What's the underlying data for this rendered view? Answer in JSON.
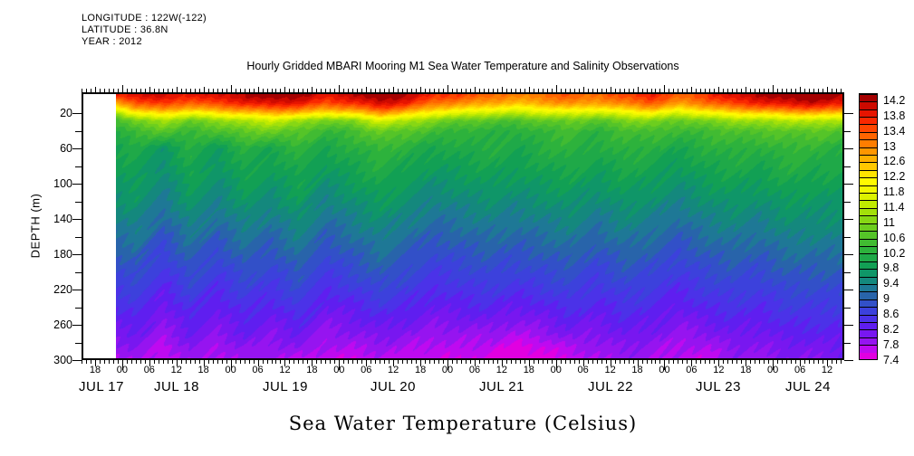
{
  "header": {
    "longitude": "LONGITUDE : 122W(-122)",
    "latitude": "LATITUDE : 36.8N",
    "year": "YEAR : 2012",
    "title": "Hourly Gridded MBARI Mooring M1 Sea Water Temperature and Salinity Observations"
  },
  "footer": {
    "title": "Sea Water Temperature (Celsius)"
  },
  "chart_data": {
    "type": "heatmap",
    "title": "Hourly Gridded MBARI Mooring M1 Sea Water Temperature and Salinity Observations",
    "subtitle_lines": [
      "LONGITUDE : 122W(-122)",
      "LATITUDE : 36.8N",
      "YEAR : 2012"
    ],
    "value_label": "Sea Water Temperature (Celsius)",
    "grid_on": false,
    "y_axis": {
      "label": "DEPTH (m)",
      "labeled_ticks": [
        20,
        60,
        100,
        140,
        180,
        220,
        260,
        300
      ],
      "minor_ticks": [
        40,
        80,
        120,
        160,
        200,
        240,
        280
      ],
      "ylim": [
        0,
        300
      ],
      "inverted": true
    },
    "x_axis": {
      "day_labels": [
        "JUL 17",
        "JUL 18",
        "JUL 19",
        "JUL 20",
        "JUL 21",
        "JUL 22",
        "JUL 23",
        "JUL 24"
      ],
      "hour_labels": [
        "18",
        "00",
        "06",
        "12",
        "18",
        "00",
        "06",
        "12",
        "18",
        "00",
        "06",
        "12",
        "18",
        "00",
        "06",
        "12",
        "18",
        "00",
        "06",
        "12",
        "18",
        "00",
        "06",
        "12",
        "18",
        "00",
        "06",
        "12"
      ],
      "minor_tick_step_hours": 1,
      "labeled_tick_step_hours": 6,
      "range": "2012-07-17 15:00 to 2012-07-24 16:00"
    },
    "colorbar": {
      "position": "right",
      "units": "Celsius",
      "cell_step": 0.2,
      "min": 7.4,
      "max": 14.4,
      "tick_labels": [
        "7.4",
        "7.8",
        "8.2",
        "8.6",
        "9",
        "9.4",
        "9.8",
        "10.2",
        "10.6",
        "11",
        "11.4",
        "11.8",
        "12.2",
        "12.6",
        "13",
        "13.4",
        "13.8",
        "14.2"
      ],
      "cell_colors_bottom_to_top": [
        "#E100E1",
        "#BE0AF0",
        "#9614F0",
        "#7817F0",
        "#5F1EF0",
        "#4B32E8",
        "#3C41DC",
        "#3250C8",
        "#2864AA",
        "#1E7896",
        "#14887D",
        "#0F9668",
        "#12A054",
        "#1FA948",
        "#2DB23C",
        "#41BB32",
        "#55C428",
        "#6DCE1E",
        "#87D714",
        "#A3E00A",
        "#C0EA00",
        "#DCF200",
        "#F2F800",
        "#FFFA00",
        "#FFE400",
        "#FFC800",
        "#FFAF00",
        "#FF9600",
        "#FF7D00",
        "#FF6400",
        "#FF4600",
        "#FA2800",
        "#E61400",
        "#CD0A00",
        "#A50000"
      ]
    },
    "grid": {
      "time_hours_after_jul17_1500": [
        7.5,
        12,
        18,
        24,
        30,
        36,
        42,
        48,
        54,
        60,
        66,
        72,
        78,
        84,
        90,
        96,
        102,
        108,
        114,
        120,
        126,
        132,
        138,
        144,
        150,
        156,
        162,
        168
      ],
      "data_start": "2012-07-17 ~22:30 (no data earlier; white gap at left of panel)",
      "depths_m": [
        0,
        8,
        14,
        20,
        28,
        40,
        60,
        90,
        120,
        150,
        180,
        210,
        240,
        270,
        285,
        300
      ],
      "temps_c": [
        [
          13.8,
          13.9,
          14.1,
          13.8,
          14.0,
          14.2,
          14.4,
          14.3,
          13.9,
          14.1,
          14.5,
          14.2,
          13.7,
          13.5,
          13.3,
          13.0,
          13.2,
          13.4,
          13.2,
          13.5,
          13.8,
          13.3,
          13.6,
          14.0,
          14.2,
          14.4,
          14.5,
          14.3
        ],
        [
          12.8,
          13.4,
          13.7,
          13.3,
          13.6,
          13.8,
          14.0,
          13.9,
          13.5,
          13.7,
          14.1,
          13.8,
          13.2,
          13.0,
          12.8,
          12.6,
          12.8,
          13.0,
          12.8,
          13.1,
          13.4,
          12.9,
          13.2,
          13.6,
          13.8,
          14.0,
          14.1,
          13.9
        ],
        [
          12.0,
          12.8,
          13.1,
          12.7,
          13.0,
          13.2,
          13.4,
          13.3,
          12.9,
          13.1,
          13.6,
          13.2,
          12.6,
          12.4,
          12.2,
          12.0,
          12.2,
          12.4,
          12.2,
          12.5,
          12.8,
          12.3,
          12.6,
          13.0,
          13.2,
          13.4,
          13.5,
          13.3
        ],
        [
          11.2,
          12.0,
          12.3,
          11.9,
          12.2,
          12.4,
          12.6,
          12.5,
          12.1,
          12.3,
          12.8,
          12.4,
          11.9,
          11.7,
          11.5,
          11.4,
          11.6,
          11.7,
          11.5,
          11.8,
          12.0,
          11.6,
          11.9,
          12.2,
          12.3,
          12.5,
          12.6,
          12.4
        ],
        [
          10.4,
          11.0,
          11.3,
          10.9,
          11.1,
          11.4,
          11.6,
          11.3,
          10.9,
          11.1,
          11.7,
          11.4,
          11.0,
          10.8,
          10.7,
          10.6,
          10.8,
          10.9,
          10.7,
          11.0,
          11.1,
          10.8,
          11.0,
          11.2,
          11.3,
          11.4,
          11.5,
          11.3
        ],
        [
          10.2,
          10.5,
          10.7,
          10.4,
          10.6,
          10.8,
          10.9,
          10.7,
          10.4,
          10.5,
          10.9,
          10.7,
          10.5,
          10.3,
          10.3,
          10.2,
          10.4,
          10.5,
          10.3,
          10.5,
          10.6,
          10.4,
          10.5,
          10.6,
          10.7,
          10.7,
          10.8,
          10.6
        ],
        [
          10.0,
          10.1,
          9.7,
          10.2,
          9.8,
          10.2,
          10.0,
          10.3,
          10.0,
          10.2,
          10.4,
          10.2,
          10.0,
          10.1,
          10.2,
          10.0,
          10.2,
          10.3,
          10.1,
          10.3,
          10.2,
          10.0,
          10.2,
          10.3,
          10.2,
          10.4,
          10.3,
          10.2
        ],
        [
          9.8,
          9.9,
          9.5,
          10.0,
          9.6,
          10.0,
          9.8,
          10.0,
          9.7,
          9.9,
          10.1,
          9.9,
          9.7,
          9.8,
          9.9,
          9.8,
          9.9,
          10.0,
          9.8,
          10.0,
          9.9,
          9.7,
          9.9,
          10.0,
          9.9,
          10.1,
          10.0,
          10.0
        ],
        [
          9.6,
          9.7,
          9.3,
          9.7,
          9.4,
          9.7,
          9.5,
          9.8,
          9.4,
          9.6,
          9.8,
          9.6,
          9.4,
          9.5,
          9.6,
          9.5,
          9.6,
          9.7,
          9.5,
          9.7,
          9.6,
          9.4,
          9.6,
          9.7,
          9.6,
          9.8,
          9.7,
          9.7
        ],
        [
          9.3,
          9.4,
          9.0,
          9.4,
          9.1,
          9.4,
          9.2,
          9.5,
          9.1,
          9.3,
          9.5,
          9.3,
          9.1,
          9.2,
          9.3,
          9.2,
          9.3,
          9.4,
          9.2,
          9.4,
          9.3,
          9.1,
          9.3,
          9.4,
          9.3,
          9.5,
          9.5,
          9.5
        ],
        [
          9.0,
          9.1,
          8.7,
          9.1,
          8.8,
          9.1,
          8.9,
          9.2,
          8.8,
          9.0,
          9.2,
          9.0,
          8.8,
          8.9,
          9.0,
          8.9,
          9.0,
          9.1,
          8.9,
          9.1,
          9.0,
          8.8,
          9.0,
          9.1,
          9.0,
          9.2,
          9.2,
          9.2
        ],
        [
          8.7,
          8.8,
          8.4,
          8.8,
          8.5,
          8.8,
          8.6,
          8.9,
          8.5,
          8.7,
          8.9,
          8.7,
          8.5,
          8.6,
          8.7,
          8.6,
          8.7,
          8.8,
          8.6,
          8.8,
          8.7,
          8.5,
          8.7,
          8.8,
          8.7,
          8.9,
          8.9,
          8.9
        ],
        [
          8.4,
          8.5,
          8.1,
          8.5,
          8.2,
          8.5,
          8.3,
          8.6,
          8.2,
          8.3,
          8.5,
          8.4,
          8.2,
          8.3,
          8.4,
          8.2,
          8.3,
          8.5,
          8.3,
          8.5,
          8.4,
          8.2,
          8.4,
          8.5,
          8.4,
          8.6,
          8.6,
          8.6
        ],
        [
          8.1,
          8.2,
          7.9,
          8.2,
          8.0,
          8.2,
          8.0,
          8.2,
          7.9,
          8.0,
          8.1,
          8.0,
          7.9,
          7.9,
          7.9,
          7.8,
          7.9,
          8.1,
          8.0,
          8.2,
          8.1,
          7.9,
          8.0,
          8.2,
          8.1,
          8.3,
          8.3,
          8.3
        ],
        [
          7.9,
          8.0,
          7.7,
          8.0,
          7.8,
          8.0,
          7.9,
          8.0,
          7.8,
          7.8,
          7.9,
          7.8,
          7.7,
          7.8,
          7.7,
          7.5,
          7.6,
          7.8,
          7.9,
          8.0,
          7.9,
          7.8,
          7.8,
          8.0,
          8.0,
          8.1,
          8.1,
          8.2
        ],
        [
          7.7,
          7.9,
          7.6,
          7.9,
          7.7,
          7.9,
          7.8,
          7.7,
          7.6,
          7.6,
          7.7,
          7.7,
          7.6,
          7.6,
          7.5,
          7.4,
          7.5,
          7.6,
          7.8,
          7.9,
          7.8,
          7.7,
          7.6,
          7.9,
          7.9,
          8.0,
          8.0,
          8.1
        ]
      ]
    }
  }
}
